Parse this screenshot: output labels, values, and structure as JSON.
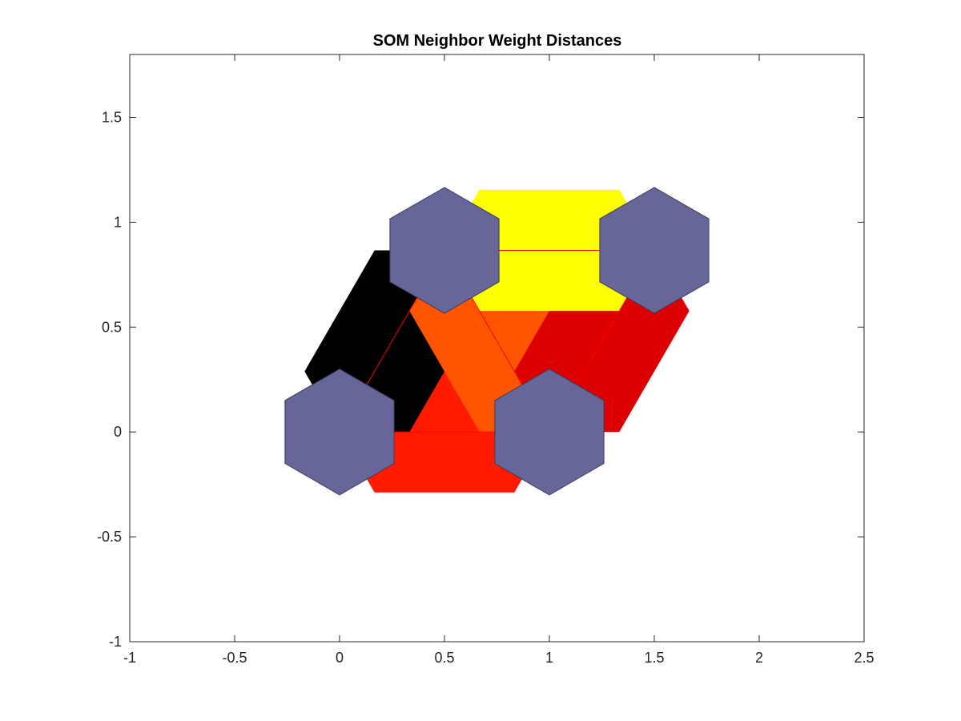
{
  "chart_data": {
    "type": "heatmap",
    "subtype": "som-neighbor-distances-hexagonal",
    "title": "SOM Neighbor Weight Distances",
    "xlabel": "",
    "ylabel": "",
    "xlim": [
      -1,
      2.5
    ],
    "ylim": [
      -1,
      1.8
    ],
    "x_ticks": [
      -1,
      -0.5,
      0,
      0.5,
      1,
      1.5,
      2,
      2.5
    ],
    "x_tick_labels": [
      "-1",
      "-0.5",
      "0",
      "0.5",
      "1",
      "1.5",
      "2",
      "2.5"
    ],
    "y_ticks": [
      -1,
      -0.5,
      0,
      0.5,
      1,
      1.5
    ],
    "y_tick_labels": [
      "-1",
      "-0.5",
      "0",
      "0.5",
      "1",
      "1.5"
    ],
    "grid": false,
    "neurons": [
      {
        "x": 0,
        "y": 0,
        "color": "#666699"
      },
      {
        "x": 1,
        "y": 0,
        "color": "#666699"
      },
      {
        "x": 0.5,
        "y": 0.866,
        "color": "#666699"
      },
      {
        "x": 1.5,
        "y": 0.866,
        "color": "#666699"
      }
    ],
    "links": [
      {
        "from": [
          0,
          0
        ],
        "to": [
          1,
          0
        ],
        "color": "#ff1a00"
      },
      {
        "from": [
          0,
          0
        ],
        "to": [
          0.5,
          0.866
        ],
        "color": "#000000"
      },
      {
        "from": [
          1,
          0
        ],
        "to": [
          0.5,
          0.866
        ],
        "color": "#ff5500"
      },
      {
        "from": [
          1,
          0
        ],
        "to": [
          1.5,
          0.866
        ],
        "color": "#dd0000"
      },
      {
        "from": [
          0.5,
          0.866
        ],
        "to": [
          1.5,
          0.866
        ],
        "color": "#ffff00"
      }
    ],
    "colors": {
      "neuron": "#666699",
      "neuron_edge": "#3b3b5c",
      "connector": "#ff0000",
      "axes": "#262626"
    }
  }
}
